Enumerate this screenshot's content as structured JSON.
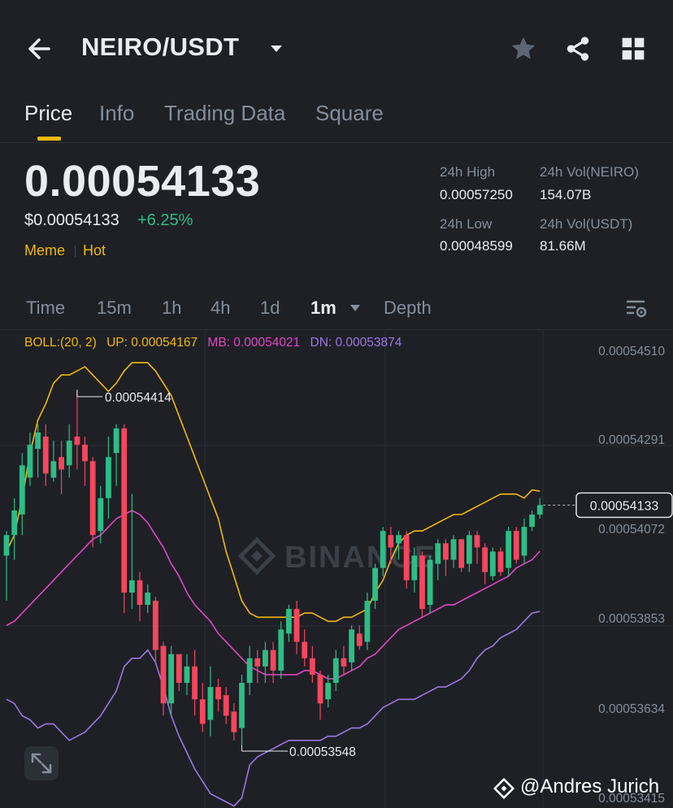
{
  "header": {
    "pair": "NEIRO/USDT",
    "icons": [
      "back-arrow-icon",
      "caret-down-icon",
      "star-icon",
      "share-icon",
      "grid-icon"
    ]
  },
  "tabs": [
    {
      "label": "Price",
      "active": true
    },
    {
      "label": "Info",
      "active": false
    },
    {
      "label": "Trading Data",
      "active": false
    },
    {
      "label": "Square",
      "active": false
    }
  ],
  "price": {
    "last": "0.00054133",
    "fiat": "$0.00054133",
    "change": "+6.25%",
    "tags": [
      "Meme",
      "Hot"
    ]
  },
  "stats": {
    "high_label": "24h High",
    "high_value": "0.00057250",
    "vol_base_label": "24h Vol(NEIRO)",
    "vol_base_value": "154.07B",
    "low_label": "24h Low",
    "low_value": "0.00048599",
    "vol_quote_label": "24h Vol(USDT)",
    "vol_quote_value": "81.66M"
  },
  "timeframes": [
    {
      "label": "Time",
      "active": false
    },
    {
      "label": "15m",
      "active": false
    },
    {
      "label": "1h",
      "active": false
    },
    {
      "label": "4h",
      "active": false
    },
    {
      "label": "1d",
      "active": false
    },
    {
      "label": "1m",
      "active": true
    },
    {
      "label": "Depth",
      "active": false
    }
  ],
  "indicator": {
    "boll": "BOLL:(20, 2)",
    "up": "UP: 0.00054167",
    "mb": "MB: 0.00054021",
    "dn": "DN: 0.00053874",
    "colors": {
      "boll": "#f0b90b",
      "up": "#f0b90b",
      "mb": "#e048c1",
      "dn": "#9c79e0"
    }
  },
  "watermark": "BINANCE",
  "credit": "@Andres Jurich",
  "chart_data": {
    "type": "candlestick",
    "y_ticks": [
      "0.00054510",
      "0.00054291",
      "0.00054072",
      "0.00053853",
      "0.00053634",
      "0.00053415"
    ],
    "ylim": [
      0.00053415,
      0.0005451
    ],
    "current_price_label": "0.00054133",
    "current_price": 0.00054133,
    "high_annotation": "0.00054414",
    "high_value": 0.00054414,
    "low_annotation": "0.00053548",
    "low_value": 0.00053548,
    "colors": {
      "up": "#2ebd85",
      "down": "#f6465d",
      "upper_band": "#f0b90b",
      "middle_band": "#e048c1",
      "lower_band": "#9c79e0"
    },
    "candles": [
      [
        0.0005401,
        0.0005406,
        0.000539,
        0.0005407
      ],
      [
        0.0005406,
        0.0005412,
        0.00054,
        0.0005415
      ],
      [
        0.0005411,
        0.0005423,
        0.0005406,
        0.0005426
      ],
      [
        0.000542,
        0.0005428,
        0.0005418,
        0.0005431
      ],
      [
        0.0005427,
        0.0005431,
        0.000542,
        0.0005433
      ],
      [
        0.000543,
        0.0005421,
        0.0005418,
        0.0005433
      ],
      [
        0.000542,
        0.0005424,
        0.0005419,
        0.0005429
      ],
      [
        0.0005425,
        0.0005422,
        0.0005416,
        0.0005429
      ],
      [
        0.0005423,
        0.0005429,
        0.000542,
        0.0005433
      ],
      [
        0.000543,
        0.0005428,
        0.0005422,
        0.00054414
      ],
      [
        0.0005428,
        0.0005424,
        0.0005418,
        0.000543
      ],
      [
        0.0005424,
        0.0005406,
        0.0005403,
        0.0005425
      ],
      [
        0.0005407,
        0.0005415,
        0.0005404,
        0.0005418
      ],
      [
        0.0005415,
        0.0005425,
        0.000541,
        0.000543
      ],
      [
        0.0005426,
        0.0005432,
        0.0005418,
        0.0005433
      ],
      [
        0.0005432,
        0.0005392,
        0.0005387,
        0.0005433
      ],
      [
        0.0005392,
        0.0005395,
        0.0005388,
        0.0005416
      ],
      [
        0.0005395,
        0.0005389,
        0.0005385,
        0.0005397
      ],
      [
        0.0005389,
        0.0005392,
        0.0005387,
        0.0005394
      ],
      [
        0.000539,
        0.0005378,
        0.0005375,
        0.0005391
      ],
      [
        0.0005379,
        0.0005365,
        0.0005362,
        0.000538
      ],
      [
        0.0005365,
        0.0005377,
        0.0005362,
        0.0005379
      ],
      [
        0.0005377,
        0.000537,
        0.0005368,
        0.0005376
      ],
      [
        0.000537,
        0.0005374,
        0.0005367,
        0.0005377
      ],
      [
        0.0005374,
        0.0005366,
        0.0005362,
        0.0005378
      ],
      [
        0.0005366,
        0.000536,
        0.0005358,
        0.000537
      ],
      [
        0.0005361,
        0.0005369,
        0.0005357,
        0.0005374
      ],
      [
        0.0005369,
        0.0005366,
        0.0005363,
        0.0005371
      ],
      [
        0.0005367,
        0.0005362,
        0.000536,
        0.0005369
      ],
      [
        0.0005363,
        0.0005358,
        0.0005356,
        0.0005365
      ],
      [
        0.0005359,
        0.000537,
        0.00053548,
        0.0005372
      ],
      [
        0.000537,
        0.0005376,
        0.0005367,
        0.0005379
      ],
      [
        0.0005376,
        0.0005374,
        0.000537,
        0.0005378
      ],
      [
        0.0005374,
        0.0005378,
        0.000537,
        0.000538
      ],
      [
        0.0005378,
        0.0005373,
        0.000537,
        0.000538
      ],
      [
        0.0005373,
        0.0005383,
        0.0005371,
        0.0005385
      ],
      [
        0.0005382,
        0.0005388,
        0.000538,
        0.0005389
      ],
      [
        0.0005388,
        0.000538,
        0.0005377,
        0.000539
      ],
      [
        0.000538,
        0.0005376,
        0.0005374,
        0.0005383
      ],
      [
        0.0005376,
        0.0005372,
        0.000537,
        0.0005379
      ],
      [
        0.0005372,
        0.0005365,
        0.0005361,
        0.0005373
      ],
      [
        0.0005366,
        0.000537,
        0.0005364,
        0.0005372
      ],
      [
        0.000537,
        0.0005376,
        0.0005368,
        0.0005378
      ],
      [
        0.0005376,
        0.0005374,
        0.0005372,
        0.0005379
      ],
      [
        0.0005375,
        0.0005383,
        0.0005373,
        0.0005384
      ],
      [
        0.0005382,
        0.0005379,
        0.0005378,
        0.0005384
      ],
      [
        0.000538,
        0.000539,
        0.0005378,
        0.0005392
      ],
      [
        0.000539,
        0.0005398,
        0.0005388,
        0.0005399
      ],
      [
        0.0005398,
        0.0005407,
        0.0005396,
        0.0005408
      ],
      [
        0.0005406,
        0.0005403,
        0.0005399,
        0.0005408
      ],
      [
        0.0005404,
        0.0005406,
        0.00054,
        0.0005407
      ],
      [
        0.0005406,
        0.0005395,
        0.0005393,
        0.0005407
      ],
      [
        0.0005395,
        0.0005401,
        0.0005392,
        0.0005403
      ],
      [
        0.0005401,
        0.0005388,
        0.0005386,
        0.0005402
      ],
      [
        0.0005389,
        0.00054,
        0.0005387,
        0.0005401
      ],
      [
        0.0005399,
        0.0005404,
        0.0005395,
        0.0005405
      ],
      [
        0.0005404,
        0.00054,
        0.0005396,
        0.0005405
      ],
      [
        0.00054,
        0.0005405,
        0.0005398,
        0.0005406
      ],
      [
        0.0005405,
        0.0005398,
        0.0005397,
        0.0005405
      ],
      [
        0.0005399,
        0.0005406,
        0.0005397,
        0.0005407
      ],
      [
        0.0005406,
        0.0005403,
        0.0005399,
        0.0005407
      ],
      [
        0.0005403,
        0.0005397,
        0.0005394,
        0.0005404
      ],
      [
        0.0005396,
        0.0005402,
        0.0005395,
        0.0005403
      ],
      [
        0.0005402,
        0.0005397,
        0.0005396,
        0.0005403
      ],
      [
        0.0005398,
        0.0005407,
        0.0005396,
        0.0005408
      ],
      [
        0.0005407,
        0.00054,
        0.0005399,
        0.0005408
      ],
      [
        0.0005401,
        0.0005408,
        0.0005399,
        0.000541
      ],
      [
        0.0005408,
        0.0005411,
        0.0005407,
        0.0005412
      ],
      [
        0.0005411,
        0.00054133,
        0.000541,
        0.0005415
      ]
    ],
    "upper_band": [
      0.0005402,
      0.0005406,
      0.0005415,
      0.0005426,
      0.0005434,
      0.0005438,
      0.0005443,
      0.0005445,
      0.0005445,
      0.0005446,
      0.0005447,
      0.0005445,
      0.0005443,
      0.0005441,
      0.0005443,
      0.0005446,
      0.0005448,
      0.0005448,
      0.0005448,
      0.0005446,
      0.0005443,
      0.000544,
      0.0005435,
      0.000543,
      0.0005425,
      0.000542,
      0.0005415,
      0.000541,
      0.0005402,
      0.0005396,
      0.000539,
      0.0005387,
      0.0005386,
      0.0005386,
      0.0005386,
      0.0005386,
      0.0005386,
      0.0005386,
      0.0005387,
      0.0005387,
      0.0005386,
      0.0005385,
      0.0005385,
      0.0005386,
      0.0005386,
      0.0005387,
      0.0005388,
      0.0005392,
      0.0005395,
      0.00054,
      0.0005404,
      0.0005406,
      0.0005407,
      0.0005407,
      0.0005408,
      0.0005409,
      0.000541,
      0.0005411,
      0.0005411,
      0.0005412,
      0.0005413,
      0.0005414,
      0.0005415,
      0.0005416,
      0.0005416,
      0.0005416,
      0.0005415,
      0.0005417,
      0.00054167
    ],
    "middle_band": [
      0.0005384,
      0.0005385,
      0.0005387,
      0.0005389,
      0.0005391,
      0.0005393,
      0.0005395,
      0.0005397,
      0.0005399,
      0.0005401,
      0.0005403,
      0.0005405,
      0.0005406,
      0.0005408,
      0.000541,
      0.0005411,
      0.0005412,
      0.0005411,
      0.0005409,
      0.0005406,
      0.0005403,
      0.0005399,
      0.0005396,
      0.0005392,
      0.0005389,
      0.0005387,
      0.0005385,
      0.0005382,
      0.000538,
      0.0005378,
      0.0005376,
      0.0005374,
      0.0005373,
      0.0005372,
      0.0005372,
      0.0005372,
      0.0005372,
      0.0005372,
      0.0005373,
      0.0005373,
      0.0005372,
      0.0005371,
      0.0005371,
      0.0005372,
      0.0005373,
      0.0005374,
      0.0005376,
      0.0005377,
      0.0005379,
      0.0005381,
      0.0005383,
      0.0005384,
      0.0005385,
      0.0005386,
      0.0005387,
      0.0005388,
      0.0005389,
      0.0005389,
      0.000539,
      0.0005391,
      0.0005392,
      0.0005393,
      0.0005394,
      0.0005395,
      0.0005396,
      0.0005398,
      0.0005399,
      0.00054,
      0.00054021
    ],
    "lower_band": [
      0.0005366,
      0.0005365,
      0.0005362,
      0.0005361,
      0.0005359,
      0.000536,
      0.000536,
      0.0005358,
      0.0005356,
      0.0005357,
      0.0005358,
      0.000536,
      0.0005362,
      0.0005365,
      0.0005368,
      0.0005374,
      0.0005376,
      0.0005376,
      0.0005378,
      0.0005375,
      0.0005369,
      0.0005362,
      0.0005357,
      0.0005353,
      0.0005349,
      0.0005346,
      0.0005343,
      0.0005342,
      0.0005341,
      0.000534,
      0.0005342,
      0.000535,
      0.0005352,
      0.0005353,
      0.0005354,
      0.0005355,
      0.0005356,
      0.0005356,
      0.0005356,
      0.0005356,
      0.0005356,
      0.0005357,
      0.0005357,
      0.0005358,
      0.0005359,
      0.0005359,
      0.000536,
      0.0005362,
      0.0005364,
      0.0005365,
      0.0005366,
      0.0005366,
      0.0005366,
      0.0005367,
      0.0005368,
      0.0005369,
      0.0005369,
      0.000537,
      0.0005371,
      0.0005373,
      0.0005376,
      0.0005378,
      0.0005379,
      0.0005381,
      0.0005382,
      0.0005383,
      0.0005385,
      0.0005387,
      0.00053874
    ]
  }
}
